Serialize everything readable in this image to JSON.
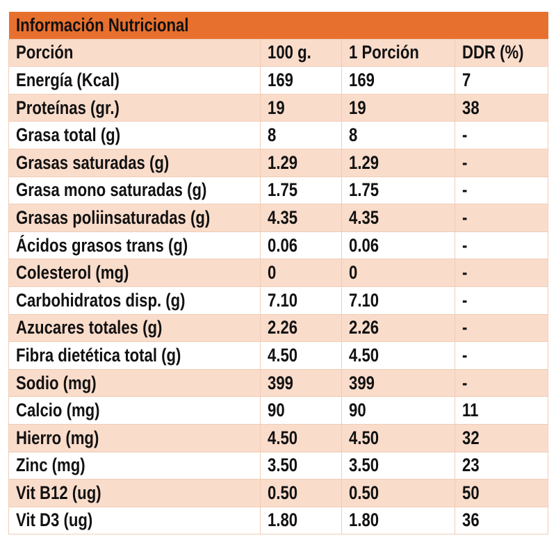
{
  "title": "Información Nutricional",
  "colors": {
    "header": "#e8702e",
    "row_shaded": "#fadccb",
    "row_plain": "#ffffff"
  },
  "columns": [
    "Porción",
    "100 g.",
    "1 Porción",
    "DDR (%)"
  ],
  "rows": [
    [
      "Energía (Kcal)",
      "169",
      "169",
      "7"
    ],
    [
      "Proteínas (gr.)",
      "19",
      "19",
      "38"
    ],
    [
      "Grasa total (g)",
      "8",
      "8",
      "-"
    ],
    [
      "Grasas saturadas (g)",
      "1.29",
      "1.29",
      "-"
    ],
    [
      "Grasa mono saturadas (g)",
      "1.75",
      "1.75",
      "-"
    ],
    [
      "Grasas poliinsaturadas (g)",
      "4.35",
      "4.35",
      "-"
    ],
    [
      "Ácidos grasos trans (g)",
      "0.06",
      "0.06",
      "-"
    ],
    [
      "Colesterol (mg)",
      "0",
      "0",
      "-"
    ],
    [
      "Carbohidratos disp. (g)",
      "7.10",
      "7.10",
      "-"
    ],
    [
      "Azucares totales (g)",
      "2.26",
      "2.26",
      "-"
    ],
    [
      "Fibra dietética total (g)",
      "4.50",
      "4.50",
      "-"
    ],
    [
      "Sodio (mg)",
      "399",
      "399",
      "-"
    ],
    [
      "Calcio (mg)",
      "90",
      "90",
      "11"
    ],
    [
      "Hierro (mg)",
      "4.50",
      "4.50",
      "32"
    ],
    [
      "Zinc (mg)",
      "3.50",
      "3.50",
      "23"
    ],
    [
      "Vit B12 (ug)",
      "0.50",
      "0.50",
      "50"
    ],
    [
      "Vit D3 (ug)",
      "1.80",
      "1.80",
      "36"
    ]
  ]
}
